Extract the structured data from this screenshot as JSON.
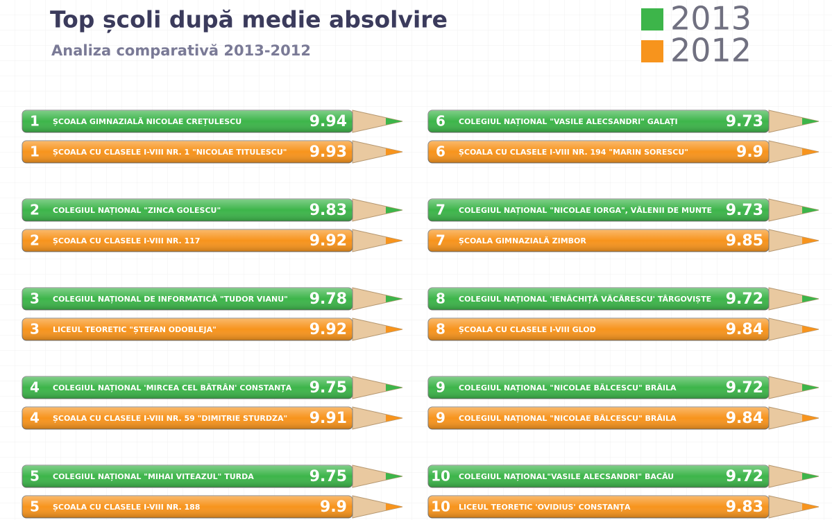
{
  "header": {
    "title": "Top școli după medie absolvire",
    "subtitle": "Analiza comparativă 2013-2012"
  },
  "legend": [
    {
      "label": "2013",
      "color": "#3db54a"
    },
    {
      "label": "2012",
      "color": "#f7941d"
    }
  ],
  "entries": [
    {
      "rows": [
        {
          "rank": 1,
          "name": "ȘCOALA GIMNAZIALĂ NICOLAE CREȚULESCU",
          "value": 9.94
        },
        {
          "rank": 1,
          "name": "ȘCOALA CU CLASELE I-VIII NR. 1 \"NICOLAE TITULESCU\"",
          "value": 9.93
        }
      ]
    },
    {
      "rows": [
        {
          "rank": 2,
          "name": "COLEGIUL NAȚIONAL \"ZINCA GOLESCU\"",
          "value": 9.83
        },
        {
          "rank": 2,
          "name": "ȘCOALA CU CLASELE I-VIII NR. 117",
          "value": 9.92
        }
      ]
    },
    {
      "rows": [
        {
          "rank": 3,
          "name": "COLEGIUL NAȚIONAL DE INFORMATICĂ \"TUDOR VIANU\"",
          "value": 9.78
        },
        {
          "rank": 3,
          "name": "LICEUL TEORETIC \"ȘTEFAN ODOBLEJA\"",
          "value": 9.92
        }
      ]
    },
    {
      "rows": [
        {
          "rank": 4,
          "name": "COLEGIUL NAȚIONAL 'MIRCEA CEL BĂTRÂN' CONSTANȚA",
          "value": 9.75
        },
        {
          "rank": 4,
          "name": "ȘCOALA CU CLASELE I-VIII NR. 59 \"DIMITRIE STURDZA\"",
          "value": 9.91
        }
      ]
    },
    {
      "rows": [
        {
          "rank": 5,
          "name": "COLEGIUL NAȚIONAL \"MIHAI VITEAZUL\" TURDA",
          "value": 9.75
        },
        {
          "rank": 5,
          "name": "ȘCOALA CU CLASELE I-VIII NR. 188",
          "value": 9.9
        }
      ]
    },
    {
      "rows": [
        {
          "rank": 6,
          "name": "COLEGIUL NAȚIONAL \"VASILE ALECSANDRI\" GALAȚI",
          "value": 9.73
        },
        {
          "rank": 6,
          "name": "ȘCOALA CU CLASELE I-VIII NR. 194 \"MARIN SORESCU\"",
          "value": 9.9
        }
      ]
    },
    {
      "rows": [
        {
          "rank": 7,
          "name": "COLEGIUL NAȚIONAL \"NICOLAE IORGA\", VĂLENII DE MUNTE",
          "value": 9.73
        },
        {
          "rank": 7,
          "name": "ȘCOALA GIMNAZIALĂ ZIMBOR",
          "value": 9.85
        }
      ]
    },
    {
      "rows": [
        {
          "rank": 8,
          "name": "COLEGIUL NAȚIONAL 'IENĂCHIȚĂ VĂCĂRESCU' TÂRGOVIȘTE",
          "value": 9.72
        },
        {
          "rank": 8,
          "name": "ȘCOALA CU CLASELE I-VIII GLOD",
          "value": 9.84
        }
      ]
    },
    {
      "rows": [
        {
          "rank": 9,
          "name": "COLEGIUL NAȚIONAL \"NICOLAE BĂLCESCU\" BRĂILA",
          "value": 9.72
        },
        {
          "rank": 9,
          "name": "COLEGIUL NAȚIONAL \"NICOLAE BĂLCESCU\" BRĂILA",
          "value": 9.84
        }
      ]
    },
    {
      "rows": [
        {
          "rank": 10,
          "name": "COLEGIUL NAȚIONAL\"VASILE ALECSANDRI\" BACĂU",
          "value": 9.72
        },
        {
          "rank": 10,
          "name": "LICEUL TEORETIC 'OVIDIUS' CONSTANȚA",
          "value": 9.83
        }
      ]
    }
  ]
}
